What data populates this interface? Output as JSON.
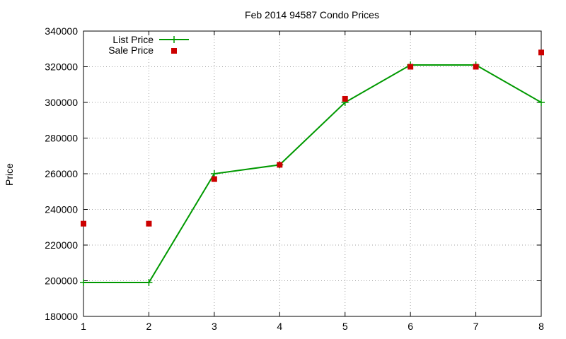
{
  "chart_data": {
    "type": "line",
    "title": "Feb 2014 94587 Condo Prices",
    "xlabel": "",
    "ylabel": "Price",
    "xlim": [
      1,
      8
    ],
    "ylim": [
      180000,
      340000
    ],
    "x_ticks": [
      "1",
      "2",
      "3",
      "4",
      "5",
      "6",
      "7",
      "8"
    ],
    "y_ticks": [
      "180000",
      "200000",
      "220000",
      "240000",
      "260000",
      "280000",
      "300000",
      "320000",
      "340000"
    ],
    "grid": true,
    "legend_position": "top-left",
    "x": [
      1,
      2,
      3,
      4,
      5,
      6,
      7,
      8
    ],
    "series": [
      {
        "name": "List Price",
        "style": "line+cross-markers",
        "color": "#009900",
        "values": [
          199000,
          199000,
          260000,
          265000,
          300000,
          321000,
          321000,
          300000
        ]
      },
      {
        "name": "Sale Price",
        "style": "square-markers",
        "color": "#cc0000",
        "values": [
          232000,
          232000,
          257000,
          265000,
          302000,
          320000,
          320000,
          328000
        ]
      }
    ]
  }
}
